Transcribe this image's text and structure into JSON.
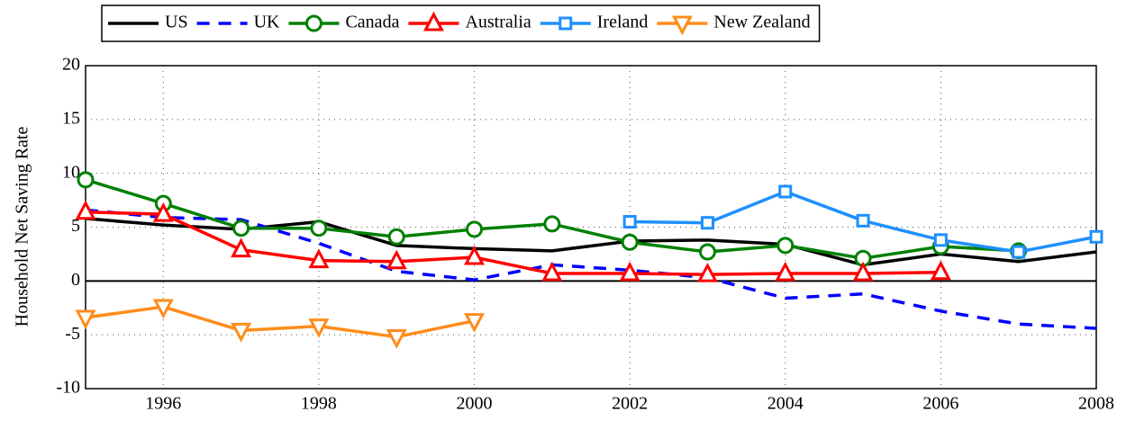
{
  "chart_data": {
    "type": "line",
    "y_label": "Household Net Saving Rate",
    "x": [
      1995,
      1996,
      1997,
      1998,
      1999,
      2000,
      2001,
      2002,
      2003,
      2004,
      2005,
      2006,
      2007,
      2008
    ],
    "xlim": [
      1995,
      2008
    ],
    "xticks": [
      1996,
      1998,
      2000,
      2002,
      2004,
      2006,
      2008
    ],
    "ylim": [
      -10,
      20
    ],
    "yticks": [
      -10,
      -5,
      0,
      5,
      10,
      15,
      20
    ],
    "grid": true,
    "zero_line": true,
    "legend": "top",
    "series": [
      {
        "name": "US",
        "color": "#000000",
        "dash": false,
        "marker": "none",
        "values": [
          5.8,
          5.2,
          4.8,
          5.5,
          3.3,
          3.0,
          2.8,
          3.7,
          3.8,
          3.4,
          1.5,
          2.5,
          1.8,
          2.7
        ]
      },
      {
        "name": "UK",
        "color": "#0000ff",
        "dash": true,
        "marker": "none",
        "values": [
          6.6,
          5.9,
          5.7,
          3.5,
          0.9,
          0.1,
          1.5,
          1.0,
          0.3,
          -1.6,
          -1.2,
          -2.8,
          -4.0,
          -4.4
        ]
      },
      {
        "name": "Canada",
        "color": "#008000",
        "dash": false,
        "marker": "circle",
        "values": [
          9.4,
          7.2,
          4.9,
          4.9,
          4.1,
          4.8,
          5.3,
          3.6,
          2.7,
          3.3,
          2.1,
          3.2,
          2.8,
          null
        ]
      },
      {
        "name": "Australia",
        "color": "#ff0000",
        "dash": false,
        "marker": "triangle-up",
        "values": [
          6.4,
          6.2,
          2.9,
          1.9,
          1.8,
          2.2,
          0.7,
          0.7,
          0.6,
          0.7,
          0.7,
          0.8,
          null,
          null
        ]
      },
      {
        "name": "Ireland",
        "color": "#1e90ff",
        "dash": false,
        "marker": "square",
        "values": [
          null,
          null,
          null,
          null,
          null,
          null,
          null,
          5.5,
          5.4,
          8.3,
          5.6,
          3.8,
          2.7,
          4.1
        ]
      },
      {
        "name": "New Zealand",
        "color": "#ff8c1a",
        "dash": false,
        "marker": "triangle-down",
        "values": [
          -3.4,
          -2.4,
          -4.6,
          -4.2,
          -5.2,
          -3.7,
          null,
          null,
          null,
          null,
          null,
          null,
          null,
          null
        ]
      }
    ]
  }
}
